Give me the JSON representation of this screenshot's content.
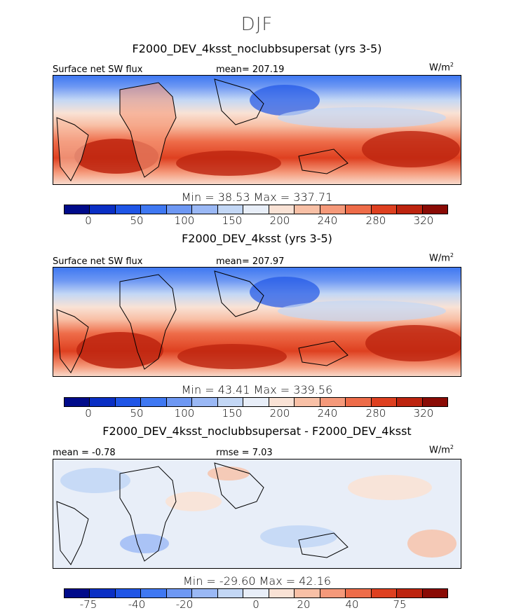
{
  "figure": {
    "title": "DJF"
  },
  "chart_data": [
    {
      "type": "heatmap",
      "title": "F2000_DEV_4ksst_noclubbsupersat (yrs 3-5)",
      "variable_label": "Surface net SW flux",
      "mean_text": "mean= 207.19",
      "units": "W/m",
      "units_exp": "2",
      "minmax_text": "Min =   38.53  Max =  337.71",
      "min": 38.53,
      "max": 337.71,
      "mean": 207.19,
      "colorbar_ticks": [
        "0",
        "50",
        "100",
        "150",
        "200",
        "240",
        "280",
        "320"
      ],
      "colorbar_colors": [
        "#000b8a",
        "#0a2fc4",
        "#1f55e6",
        "#3f78f2",
        "#6e98f3",
        "#9ab8f5",
        "#c3d7f5",
        "#e8eef8",
        "#f9e2d5",
        "#f8c0a6",
        "#f5997a",
        "#ee6c49",
        "#de4020",
        "#bd240f",
        "#8a0b05"
      ]
    },
    {
      "type": "heatmap",
      "title": "F2000_DEV_4ksst (yrs 3-5)",
      "variable_label": "Surface net SW flux",
      "mean_text": "mean= 207.97",
      "units": "W/m",
      "units_exp": "2",
      "minmax_text": "Min =   43.41  Max =  339.56",
      "min": 43.41,
      "max": 339.56,
      "mean": 207.97,
      "colorbar_ticks": [
        "0",
        "50",
        "100",
        "150",
        "200",
        "240",
        "280",
        "320"
      ],
      "colorbar_colors": [
        "#000b8a",
        "#0a2fc4",
        "#1f55e6",
        "#3f78f2",
        "#6e98f3",
        "#9ab8f5",
        "#c3d7f5",
        "#e8eef8",
        "#f9e2d5",
        "#f8c0a6",
        "#f5997a",
        "#ee6c49",
        "#de4020",
        "#bd240f",
        "#8a0b05"
      ]
    },
    {
      "type": "heatmap",
      "title": "F2000_DEV_4ksst_noclubbsupersat - F2000_DEV_4ksst",
      "mean_text": "mean =  -0.78",
      "rmse_text": "rmse =   7.03",
      "units": "W/m",
      "units_exp": "2",
      "minmax_text": "Min =  -29.60  Max =   42.16",
      "min": -29.6,
      "max": 42.16,
      "mean": -0.78,
      "rmse": 7.03,
      "colorbar_ticks": [
        "-75",
        "-40",
        "-20",
        "0",
        "20",
        "40",
        "75"
      ],
      "colorbar_colors": [
        "#000b8a",
        "#0a2fc4",
        "#1f55e6",
        "#3f78f2",
        "#6e98f3",
        "#9ab8f5",
        "#c3d7f5",
        "#e8eef8",
        "#f9e2d5",
        "#f8c0a6",
        "#f5997a",
        "#ee6c49",
        "#de4020",
        "#bd240f",
        "#8a0b05"
      ]
    }
  ]
}
